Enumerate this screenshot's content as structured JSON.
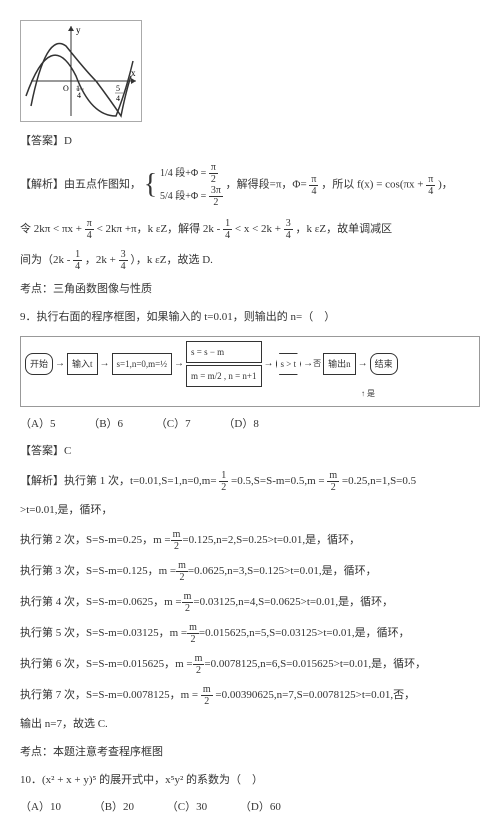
{
  "graph": {
    "y_label": "y",
    "x_label": "x",
    "tick1": "O",
    "tick2": "1",
    "tick3": "4",
    "frac1_num": "5",
    "frac1_den": "4"
  },
  "ans1": {
    "label": "【答案】D"
  },
  "expl1": {
    "label": "【解析】由五点作图知，",
    "eq1a_top": "1/4 段+Φ =",
    "eq1a_top_frac_n": "π",
    "eq1a_top_frac_d": "2",
    "eq1a_bot": "5/4 段+Φ =",
    "eq1a_bot_frac_n": "3π",
    "eq1a_bot_frac_d": "2",
    "eq1_mid": "，解得段=π，Φ=",
    "phi_frac_n": "π",
    "phi_frac_d": "4",
    "eq1_end": "，所以 f(x) = cos(πx +",
    "eq1_end2": ")，"
  },
  "expl2": {
    "line1a": "令 2kπ < πx +",
    "f1_n": "π",
    "f1_d": "4",
    "line1b": " < 2kπ +π，k εZ，解得 2k -",
    "f2_n": "1",
    "f2_d": "4",
    "line1c": " < x < 2k +",
    "f3_n": "3",
    "f3_d": "4",
    "line1d": "，k εZ，故单调减区",
    "line2a": "间为（2k -",
    "f4_n": "1",
    "f4_d": "4",
    "line2b": "，2k +",
    "f5_n": "3",
    "f5_d": "4",
    "line2c": "），k εZ，故选 D."
  },
  "kaodian1": "考点：三角函数图像与性质",
  "q9": "9．执行右面的程序框图，如果输入的 t=0.01，则输出的 n=（　）",
  "flow": {
    "start": "开始",
    "in": "输入t",
    "init": "s=1,n=0,m=½",
    "step1": "s = s − m",
    "step2": "m = m/2 , n = n+1",
    "cond": "s > t",
    "yes": "是",
    "no": "否",
    "out": "输出n",
    "end": "结束"
  },
  "choices9": {
    "a": "（A）5",
    "b": "（B）6",
    "c": "（C）7",
    "d": "（D）8"
  },
  "ans2": {
    "label": "【答案】C"
  },
  "expl3": {
    "head": "【解析】执行第 1 次，t=0.01,S=1,n=0,m=",
    "hfrac_n": "1",
    "hfrac_d": "2",
    "head2": "=0.5,S=S-m=0.5,m =",
    "hfrac2_n": "m",
    "hfrac2_d": "2",
    "head3": "=0.25,n=1,S=0.5",
    "tail": ">t=0.01,是，循环，"
  },
  "iters": [
    {
      "pre": "执行第 2 次，S=S-m=0.25，m =",
      "fn": "m",
      "fd": "2",
      "post": "=0.125,n=2,S=0.25>t=0.01,是，循环，"
    },
    {
      "pre": "执行第 3 次，S=S-m=0.125，m =",
      "fn": "m",
      "fd": "2",
      "post": "=0.0625,n=3,S=0.125>t=0.01,是，循环，"
    },
    {
      "pre": "执行第 4 次，S=S-m=0.0625，m =",
      "fn": "m",
      "fd": "2",
      "post": "=0.03125,n=4,S=0.0625>t=0.01,是，循环，"
    },
    {
      "pre": "执行第 5 次，S=S-m=0.03125，m =",
      "fn": "m",
      "fd": "2",
      "post": "=0.015625,n=5,S=0.03125>t=0.01,是，循环，"
    },
    {
      "pre": "执行第 6 次，S=S-m=0.015625，m =",
      "fn": "m",
      "fd": "2",
      "post": "=0.0078125,n=6,S=0.015625>t=0.01,是，循环，"
    }
  ],
  "iter7": {
    "pre": "执行第 7 次，S=S-m=0.0078125，m =",
    "fn": "m",
    "fd": "2",
    "post": "=0.00390625,n=7,S=0.0078125>t=0.01,否，"
  },
  "output_line": "输出 n=7，故选 C.",
  "kaodian2": "考点：本题注意考查程序框图",
  "q10": "10．(x² + x + y)⁵ 的展开式中，x⁵y² 的系数为（　）",
  "choices10": {
    "a": "（A）10",
    "b": "（B）20",
    "c": "（C）30",
    "d": "（D）60"
  }
}
